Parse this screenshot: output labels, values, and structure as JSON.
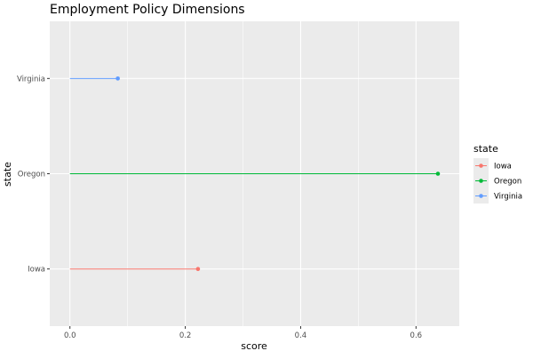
{
  "chart_data": {
    "type": "lollipop",
    "title": "Employment Policy Dimensions",
    "xlabel": "score",
    "ylabel": "state",
    "xlim": [
      -0.035,
      0.675
    ],
    "x_ticks": [
      0.0,
      0.2,
      0.4,
      0.6
    ],
    "x_tick_labels": [
      "0.0",
      "0.2",
      "0.4",
      "0.6"
    ],
    "categories": [
      "Iowa",
      "Oregon",
      "Virginia"
    ],
    "series": [
      {
        "name": "Iowa",
        "value": 0.222,
        "color": "#F8766D"
      },
      {
        "name": "Oregon",
        "value": 0.638,
        "color": "#00BA38"
      },
      {
        "name": "Virginia",
        "value": 0.083,
        "color": "#619CFF"
      }
    ],
    "legend": {
      "title": "state",
      "placement": "right",
      "entries": [
        "Iowa",
        "Oregon",
        "Virginia"
      ]
    },
    "grid": true,
    "panel_background": "#EBEBEB",
    "grid_color": "#FFFFFF"
  }
}
